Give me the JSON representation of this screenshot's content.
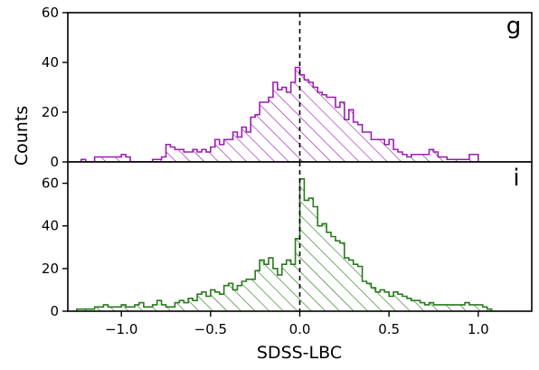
{
  "chart_data": [
    {
      "type": "bar",
      "panel_label": "g",
      "color": "#9b1fb0",
      "hatch": "diagonal",
      "ylim": [
        0,
        60
      ],
      "yticks": [
        "0",
        "20",
        "40",
        "60"
      ],
      "bin_edges": [
        -1.225,
        -1.2,
        -1.175,
        -1.15,
        -1.125,
        -1.1,
        -1.075,
        -1.05,
        -1.025,
        -1.0,
        -0.975,
        -0.95,
        -0.925,
        -0.9,
        -0.875,
        -0.85,
        -0.825,
        -0.8,
        -0.775,
        -0.75,
        -0.725,
        -0.7,
        -0.675,
        -0.65,
        -0.625,
        -0.6,
        -0.575,
        -0.55,
        -0.525,
        -0.5,
        -0.475,
        -0.45,
        -0.425,
        -0.4,
        -0.375,
        -0.35,
        -0.325,
        -0.3,
        -0.275,
        -0.25,
        -0.225,
        -0.2,
        -0.175,
        -0.15,
        -0.125,
        -0.1,
        -0.075,
        -0.05,
        -0.025,
        0.0,
        0.025,
        0.05,
        0.075,
        0.1,
        0.125,
        0.15,
        0.175,
        0.2,
        0.225,
        0.25,
        0.275,
        0.3,
        0.325,
        0.35,
        0.375,
        0.4,
        0.425,
        0.45,
        0.475,
        0.5,
        0.525,
        0.55,
        0.575,
        0.6,
        0.625,
        0.65,
        0.675,
        0.7,
        0.725,
        0.75,
        0.775,
        0.8,
        0.825,
        0.85,
        0.875,
        0.9,
        0.925,
        0.95,
        0.975,
        1.0
      ],
      "counts": [
        1,
        0,
        0,
        2,
        2,
        2,
        2,
        2,
        2,
        3,
        2,
        0,
        0,
        0,
        0,
        0,
        1,
        1,
        2,
        7,
        6,
        5,
        5,
        4,
        4,
        5,
        4,
        5,
        4,
        6,
        9,
        7,
        9,
        9,
        12,
        10,
        14,
        12,
        18,
        19,
        24,
        24,
        26,
        32,
        29,
        30,
        28,
        32,
        38,
        35,
        33,
        32,
        30,
        28,
        27,
        26,
        26,
        22,
        24,
        17,
        21,
        16,
        15,
        12,
        12,
        9,
        9,
        9,
        7,
        9,
        5,
        4,
        3,
        2,
        3,
        3,
        3,
        3,
        5,
        4,
        2,
        2,
        1,
        1,
        1,
        1,
        1,
        3,
        3
      ]
    },
    {
      "type": "bar",
      "panel_label": "i",
      "color": "#2a7a1e",
      "hatch": "diagonal",
      "ylim": [
        0,
        70
      ],
      "yticks": [
        "0",
        "20",
        "40",
        "60"
      ],
      "xlabel": "SDSS-LBC",
      "xticks": [
        "−1.0",
        "−0.5",
        "0.0",
        "0.5",
        "1.0"
      ],
      "xtick_values": [
        -1.0,
        -0.5,
        0.0,
        0.5,
        1.0
      ],
      "bin_edges": [
        -1.25,
        -1.225,
        -1.2,
        -1.175,
        -1.15,
        -1.125,
        -1.1,
        -1.075,
        -1.05,
        -1.025,
        -1.0,
        -0.975,
        -0.95,
        -0.925,
        -0.9,
        -0.875,
        -0.85,
        -0.825,
        -0.8,
        -0.775,
        -0.75,
        -0.725,
        -0.7,
        -0.675,
        -0.65,
        -0.625,
        -0.6,
        -0.575,
        -0.55,
        -0.525,
        -0.5,
        -0.475,
        -0.45,
        -0.425,
        -0.4,
        -0.375,
        -0.35,
        -0.325,
        -0.3,
        -0.275,
        -0.25,
        -0.225,
        -0.2,
        -0.175,
        -0.15,
        -0.125,
        -0.1,
        -0.075,
        -0.05,
        -0.025,
        0.0,
        0.025,
        0.05,
        0.075,
        0.1,
        0.125,
        0.15,
        0.175,
        0.2,
        0.225,
        0.25,
        0.275,
        0.3,
        0.325,
        0.35,
        0.375,
        0.4,
        0.425,
        0.45,
        0.475,
        0.5,
        0.525,
        0.55,
        0.575,
        0.6,
        0.625,
        0.65,
        0.675,
        0.7,
        0.725,
        0.75,
        0.775,
        0.8,
        0.825,
        0.85,
        0.875,
        0.9,
        0.925,
        0.95,
        0.975,
        1.0,
        1.025,
        1.05,
        1.075
      ],
      "counts": [
        1,
        1,
        1,
        1,
        2,
        2,
        3,
        2,
        2,
        2,
        3,
        2,
        2,
        3,
        4,
        2,
        2,
        3,
        5,
        3,
        2,
        2,
        4,
        5,
        4,
        6,
        5,
        8,
        9,
        7,
        10,
        9,
        8,
        12,
        13,
        10,
        12,
        14,
        15,
        15,
        19,
        24,
        22,
        25,
        20,
        17,
        22,
        24,
        22,
        34,
        62,
        52,
        53,
        49,
        40,
        41,
        37,
        35,
        33,
        32,
        25,
        24,
        22,
        21,
        14,
        13,
        11,
        9,
        10,
        9,
        7,
        9,
        8,
        7,
        6,
        5,
        5,
        4,
        3,
        4,
        3,
        3,
        3,
        3,
        3,
        3,
        3,
        4,
        3,
        3,
        3,
        2,
        1
      ]
    }
  ],
  "shared": {
    "ylabel": "Counts",
    "xlim": [
      -1.3,
      1.3
    ],
    "vline_x": 0.0
  }
}
